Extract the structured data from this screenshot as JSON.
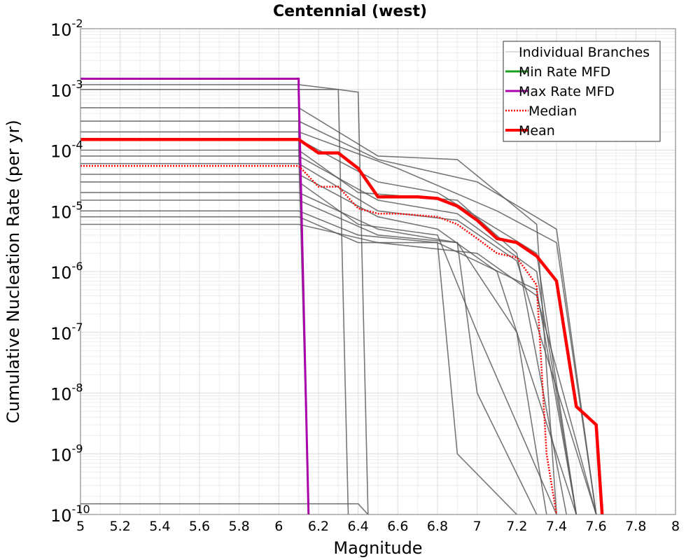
{
  "chart_data": {
    "type": "line",
    "title": "Centennial (west)",
    "xlabel": "Magnitude",
    "ylabel": "Cumulative Nucleation Rate (per yr)",
    "xlim": [
      5,
      8
    ],
    "ylim": [
      1e-10,
      0.01
    ],
    "y_scale": "log",
    "grid": true,
    "legend_position": "top-right",
    "x_ticks": [
      "5",
      "5.2",
      "5.4",
      "5.6",
      "5.8",
      "6",
      "6.2",
      "6.4",
      "6.6",
      "6.8",
      "7",
      "7.2",
      "7.4",
      "7.6",
      "7.8",
      "8"
    ],
    "y_ticks": [
      {
        "base": "10",
        "exp": "-2",
        "value": 0.01
      },
      {
        "base": "10",
        "exp": "-3",
        "value": 0.001
      },
      {
        "base": "10",
        "exp": "-4",
        "value": 0.0001
      },
      {
        "base": "10",
        "exp": "-5",
        "value": 1e-05
      },
      {
        "base": "10",
        "exp": "-6",
        "value": 1e-06
      },
      {
        "base": "10",
        "exp": "-7",
        "value": 1e-07
      },
      {
        "base": "10",
        "exp": "-8",
        "value": 1e-08
      },
      {
        "base": "10",
        "exp": "-9",
        "value": 1e-09
      },
      {
        "base": "10",
        "exp": "-10",
        "value": 1e-10
      }
    ],
    "series": [
      {
        "name": "Individual Branches",
        "color": "#555555",
        "style": "thin",
        "branches": [
          {
            "x": [
              5,
              6.1,
              6.1,
              6.15
            ],
            "y": [
              0.0015,
              0.0015,
              0.0001,
              1e-10
            ]
          },
          {
            "x": [
              5,
              6.1,
              6.3,
              6.35
            ],
            "y": [
              0.0012,
              0.0012,
              0.001,
              1e-10
            ]
          },
          {
            "x": [
              5,
              6.3,
              6.4,
              6.45
            ],
            "y": [
              0.001,
              0.001,
              0.0009,
              1e-10
            ]
          },
          {
            "x": [
              5,
              6.1,
              6.5,
              6.9,
              7.3,
              7.4
            ],
            "y": [
              0.0005,
              0.0005,
              8e-05,
              7e-05,
              6e-06,
              1e-10
            ]
          },
          {
            "x": [
              5,
              6.1,
              6.5,
              7.0,
              7.4,
              7.6
            ],
            "y": [
              0.0003,
              0.0003,
              7e-05,
              3e-05,
              5e-06,
              1e-10
            ]
          },
          {
            "x": [
              5,
              6.1,
              6.6,
              7.1,
              7.4,
              7.6
            ],
            "y": [
              0.0002,
              0.0002,
              5e-05,
              1e-05,
              3e-06,
              1e-10
            ]
          },
          {
            "x": [
              5,
              6.1,
              6.5,
              6.8,
              7.3,
              7.5
            ],
            "y": [
              0.00015,
              0.00015,
              3e-05,
              2e-05,
              2e-06,
              1e-10
            ]
          },
          {
            "x": [
              5,
              6.1,
              6.4,
              6.9,
              7.2,
              7.45
            ],
            "y": [
              0.0001,
              0.0001,
              2e-05,
              1.5e-05,
              2e-06,
              1e-10
            ]
          },
          {
            "x": [
              5,
              6.1,
              6.5,
              6.9,
              7.3,
              7.5
            ],
            "y": [
              8e-05,
              8e-05,
              1.5e-05,
              9e-06,
              1e-06,
              1e-10
            ]
          },
          {
            "x": [
              5,
              6.1,
              6.5,
              6.9,
              7.2,
              7.6
            ],
            "y": [
              6e-05,
              6e-05,
              1e-05,
              7e-06,
              1.5e-06,
              1e-10
            ]
          },
          {
            "x": [
              5,
              6.1,
              6.5,
              6.8,
              7.1,
              7.5
            ],
            "y": [
              4e-05,
              4e-05,
              8e-06,
              5e-06,
              1e-06,
              1e-10
            ]
          },
          {
            "x": [
              5,
              6.1,
              6.4,
              6.8,
              7.0,
              7.4
            ],
            "y": [
              3e-05,
              3e-05,
              6e-06,
              4e-06,
              1e-07,
              1e-10
            ]
          },
          {
            "x": [
              5,
              6.1,
              6.5,
              6.9,
              7.2,
              7.35
            ],
            "y": [
              2e-05,
              2e-05,
              5e-06,
              3e-06,
              1e-07,
              1e-10
            ]
          },
          {
            "x": [
              5,
              6.1,
              6.5,
              6.9,
              7.0,
              7.3
            ],
            "y": [
              1.5e-05,
              1.5e-05,
              4e-06,
              3e-06,
              1e-08,
              1e-10
            ]
          },
          {
            "x": [
              5,
              6.1,
              6.4,
              6.8,
              6.9,
              7.2
            ],
            "y": [
              1e-05,
              1e-05,
              4e-06,
              3e-06,
              1e-09,
              1e-10
            ]
          },
          {
            "x": [
              5,
              6.1,
              6.4,
              6.8,
              7.3,
              7.5
            ],
            "y": [
              8e-06,
              8e-06,
              3e-06,
              3e-06,
              5e-07,
              1e-10
            ]
          },
          {
            "x": [
              5,
              6.1,
              6.5,
              7.0,
              7.3,
              7.6
            ],
            "y": [
              6e-06,
              6e-06,
              3e-06,
              2e-06,
              4e-07,
              1e-10
            ]
          },
          {
            "x": [
              5,
              6.4,
              6.45
            ],
            "y": [
              1.5e-10,
              1.5e-10,
              1e-10
            ]
          }
        ]
      },
      {
        "name": "Min Rate MFD",
        "color": "#1aa01a",
        "style": "thick",
        "x": [],
        "y": []
      },
      {
        "name": "Max Rate MFD",
        "color": "#aa00aa",
        "style": "thick",
        "x": [
          5,
          6.1,
          6.1,
          6.15
        ],
        "y": [
          0.0015,
          0.0015,
          0.001,
          1e-10
        ]
      },
      {
        "name": "Median",
        "color": "#ff0000",
        "style": "dotted",
        "x": [
          5,
          6.1,
          6.2,
          6.3,
          6.4,
          6.5,
          6.6,
          6.8,
          6.9,
          7.0,
          7.1,
          7.2,
          7.3,
          7.35,
          7.4
        ],
        "y": [
          5.5e-05,
          5.5e-05,
          2.5e-05,
          2.5e-05,
          1.1e-05,
          9e-06,
          9e-06,
          8e-06,
          6e-06,
          3.5e-06,
          2e-06,
          1.7e-06,
          6e-07,
          1e-09,
          1e-10
        ]
      },
      {
        "name": "Mean",
        "color": "#ff0000",
        "style": "bold",
        "x": [
          5,
          6.1,
          6.2,
          6.3,
          6.4,
          6.5,
          6.6,
          6.7,
          6.8,
          6.9,
          7.0,
          7.1,
          7.2,
          7.3,
          7.4,
          7.5,
          7.6,
          7.63
        ],
        "y": [
          0.00015,
          0.00015,
          9e-05,
          9e-05,
          5e-05,
          1.7e-05,
          1.7e-05,
          1.7e-05,
          1.6e-05,
          1.2e-05,
          7e-06,
          3.5e-06,
          3e-06,
          1.8e-06,
          7e-07,
          6e-09,
          3e-09,
          1e-10
        ]
      }
    ],
    "legend": [
      {
        "label": "Individual Branches",
        "color": "#bbbbbb",
        "style": "thin"
      },
      {
        "label": "Min Rate MFD",
        "color": "#1aa01a",
        "style": "solid"
      },
      {
        "label": "Max Rate MFD",
        "color": "#aa00aa",
        "style": "solid"
      },
      {
        "label": "Median",
        "color": "#ff0000",
        "style": "dotted"
      },
      {
        "label": "Mean",
        "color": "#ff0000",
        "style": "bold"
      }
    ]
  }
}
